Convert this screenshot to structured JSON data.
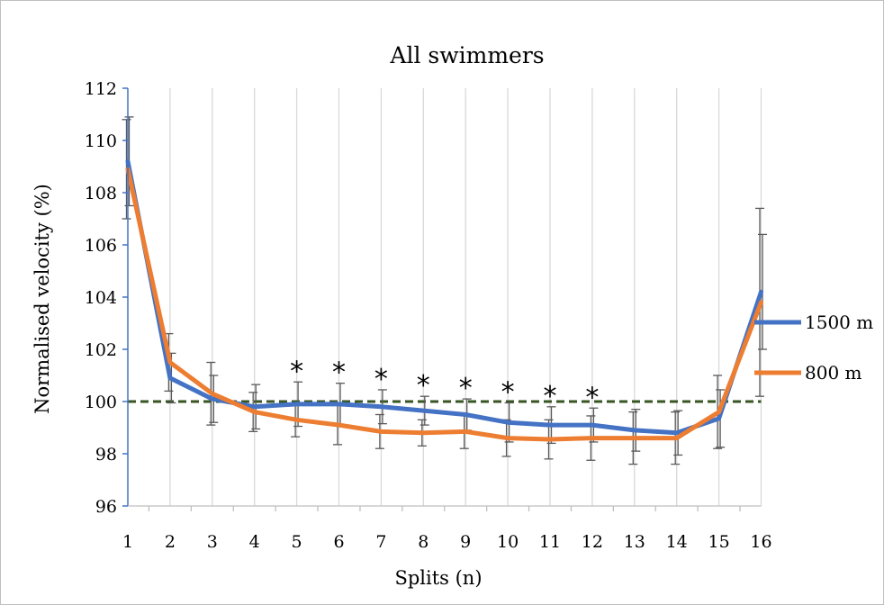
{
  "chart_data": {
    "type": "line",
    "title": "All swimmers",
    "xlabel": "Splits (n)",
    "ylabel": "Normalised velocity (%)",
    "categories": [
      1,
      2,
      3,
      4,
      5,
      6,
      7,
      8,
      9,
      10,
      11,
      12,
      13,
      14,
      15,
      16
    ],
    "ylim": [
      96,
      112
    ],
    "yticks": [
      96,
      98,
      100,
      102,
      104,
      106,
      108,
      110,
      112
    ],
    "grid": "vertical",
    "legend_position": "right",
    "reference_line": {
      "y": 100,
      "style": "dashed",
      "color": "#375623"
    },
    "series": [
      {
        "name": "1500 m",
        "color": "#4472c4",
        "values": [
          109.2,
          100.9,
          100.1,
          99.8,
          99.9,
          99.9,
          99.8,
          99.65,
          99.5,
          99.2,
          99.1,
          99.1,
          98.9,
          98.8,
          99.35,
          104.2
        ],
        "error": [
          1.7,
          0.95,
          0.9,
          0.85,
          0.85,
          0.8,
          0.65,
          0.55,
          0.6,
          0.75,
          0.7,
          0.65,
          0.8,
          0.85,
          1.1,
          2.2
        ]
      },
      {
        "name": "800 m",
        "color": "#ed7d31",
        "values": [
          108.9,
          101.5,
          100.3,
          99.6,
          99.3,
          99.1,
          98.85,
          98.8,
          98.85,
          98.6,
          98.55,
          98.6,
          98.6,
          98.6,
          99.6,
          103.8
        ],
        "error": [
          1.9,
          1.1,
          1.2,
          0.75,
          0.65,
          0.75,
          0.65,
          0.5,
          0.65,
          0.7,
          0.75,
          0.85,
          1.0,
          1.0,
          1.4,
          3.6
        ]
      }
    ],
    "significance_markers": {
      "symbol": "*",
      "splits": [
        5,
        6,
        7,
        8,
        9,
        10,
        11,
        12
      ]
    }
  }
}
